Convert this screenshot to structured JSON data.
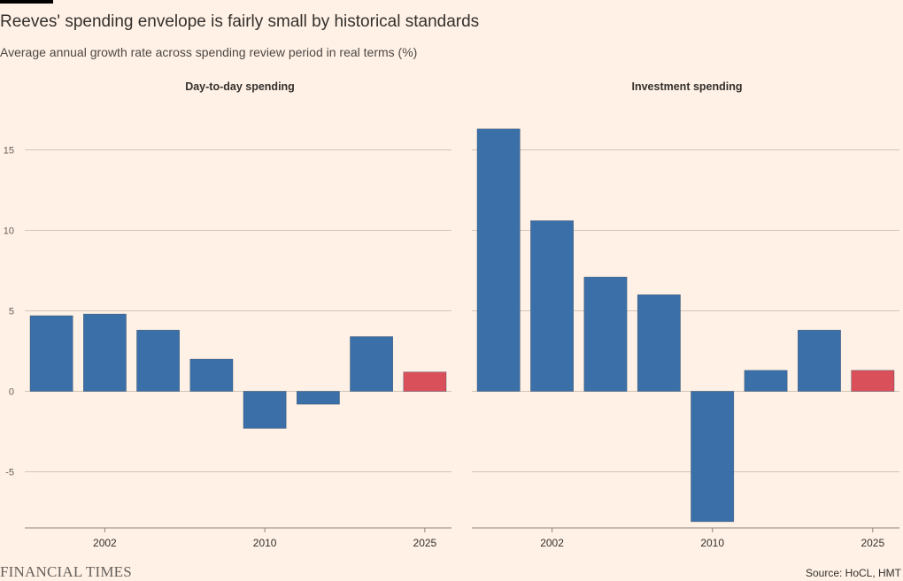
{
  "header": {
    "title": "Reeves' spending envelope is fairly small by historical standards",
    "subtitle": "Average annual growth rate across spending review period in real terms (%)"
  },
  "footer": {
    "logo": "FINANCIAL TIMES",
    "source": "Source: HoCL, HMT"
  },
  "colors": {
    "background": "#FFF1E5",
    "bar_historical": "#3A6FA8",
    "bar_highlight": "#D9505A",
    "gridline": "#CEC6B9",
    "axis": "#8C8580"
  },
  "chart_data": [
    {
      "type": "bar",
      "title": "Day-to-day spending",
      "ylim": [
        -8.5,
        17.5
      ],
      "y_ticks": [
        -5,
        0,
        5,
        10,
        15
      ],
      "x_tick_labels": [
        {
          "label": "2002",
          "index": 1
        },
        {
          "label": "2010",
          "index": 4
        },
        {
          "label": "2025",
          "index": 7
        }
      ],
      "values": [
        4.7,
        4.8,
        3.8,
        2.0,
        -2.3,
        -0.8,
        3.4,
        1.2
      ],
      "highlight_index": 7,
      "grid": true
    },
    {
      "type": "bar",
      "title": "Investment spending",
      "ylim": [
        -8.5,
        17.5
      ],
      "y_ticks": [
        -5,
        0,
        5,
        10,
        15
      ],
      "x_tick_labels": [
        {
          "label": "2002",
          "index": 1
        },
        {
          "label": "2010",
          "index": 4
        },
        {
          "label": "2025",
          "index": 7
        }
      ],
      "values": [
        16.3,
        10.6,
        7.1,
        6.0,
        -8.1,
        1.3,
        3.8,
        1.3
      ],
      "highlight_index": 7,
      "grid": true
    }
  ]
}
